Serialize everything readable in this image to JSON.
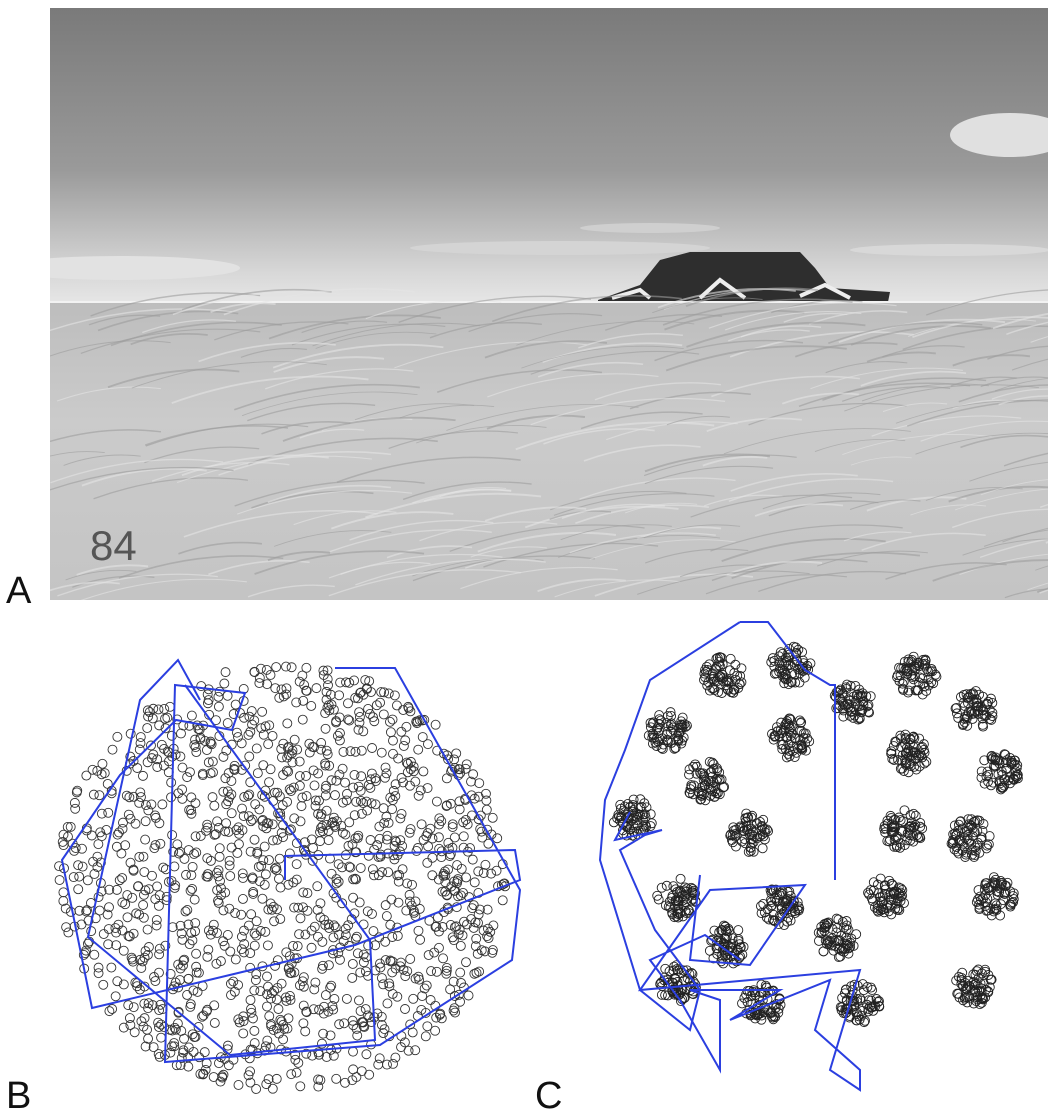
{
  "panels": {
    "a": {
      "label": "A",
      "counter": "84"
    },
    "b": {
      "label": "B"
    },
    "c": {
      "label": "C"
    }
  }
}
